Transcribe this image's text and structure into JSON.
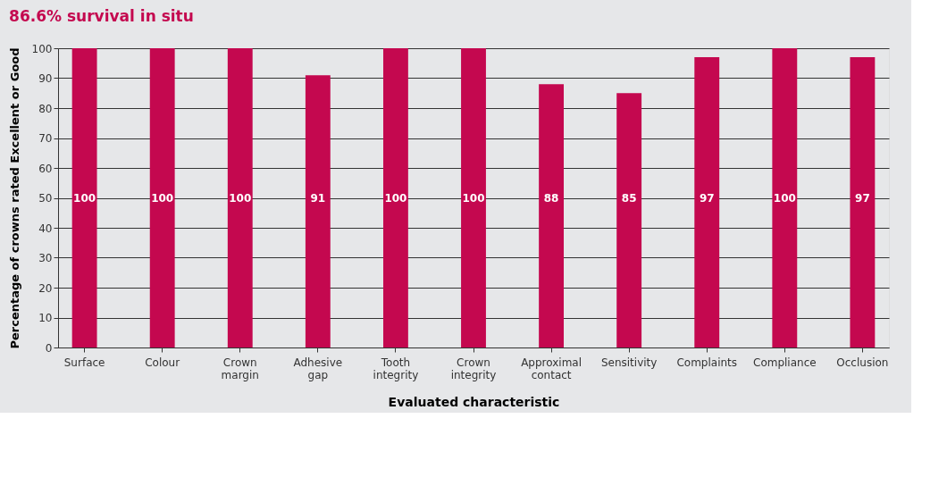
{
  "chart_data": {
    "type": "bar",
    "title": "86.6% survival in situ",
    "xlabel": "Evaluated characteristic",
    "ylabel": "Percentage of crowns rated Excellent or Good",
    "categories": [
      "Surface",
      "Colour",
      "Crown margin",
      "Adhesive gap",
      "Tooth integrity",
      "Crown integrity",
      "Approximal contact",
      "Sensitivity",
      "Complaints",
      "Compliance",
      "Occlusion"
    ],
    "values": [
      100,
      100,
      100,
      91,
      100,
      100,
      88,
      85,
      97,
      100,
      97
    ],
    "color": "#c4084f",
    "ylim": [
      0,
      100
    ],
    "yticks": [
      0,
      10,
      20,
      30,
      40,
      50,
      60,
      70,
      80,
      90,
      100
    ],
    "grid": "y",
    "data_labels": true
  }
}
